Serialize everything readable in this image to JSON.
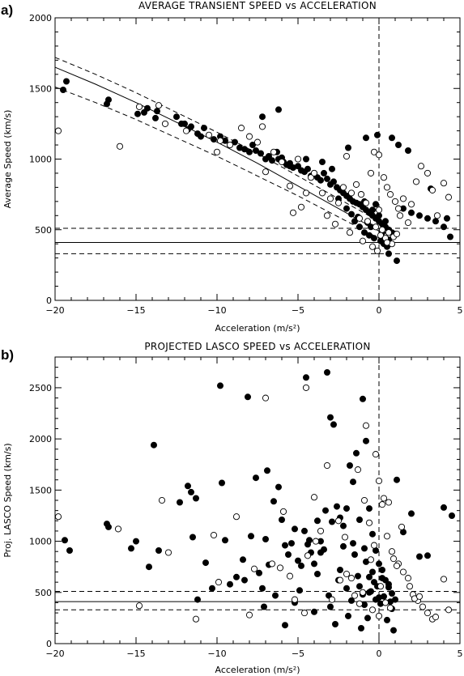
{
  "figure": {
    "panel_a_letter": "a)",
    "panel_b_letter": "b)"
  },
  "chart_data": [
    {
      "type": "scatter",
      "title": "AVERAGE TRANSIENT SPEED vs ACCELERATION",
      "xlabel": "Acceleration (m/s²)",
      "ylabel": "Average Speed (km/s)",
      "xlim": [
        -20,
        5
      ],
      "ylim": [
        0,
        2000
      ],
      "xticks": [
        -20,
        -15,
        -10,
        -5,
        0,
        5
      ],
      "yticks": [
        0,
        500,
        1000,
        1500,
        2000
      ],
      "grid": false,
      "reference_lines": {
        "vertical_dashed_x": 0,
        "horizontal_solid_y": 410,
        "horizontal_dashed_y": [
          510,
          330
        ]
      },
      "curves": [
        {
          "style": "solid",
          "x": [
            -20,
            -17.5,
            -15,
            -12.5,
            -10,
            -7.5,
            -5,
            -2.5,
            0
          ],
          "y": [
            1650,
            1530,
            1400,
            1260,
            1120,
            970,
            810,
            650,
            490
          ]
        },
        {
          "style": "dashed",
          "x": [
            -20,
            -17.5,
            -15,
            -12.5,
            -10,
            -7.5,
            -5,
            -2.5,
            0
          ],
          "y": [
            1720,
            1600,
            1470,
            1330,
            1190,
            1040,
            880,
            720,
            560
          ]
        },
        {
          "style": "dashed",
          "x": [
            -20,
            -17.5,
            -15,
            -12.5,
            -10,
            -7.5,
            -5,
            -2.5,
            0
          ],
          "y": [
            1510,
            1400,
            1280,
            1150,
            1020,
            880,
            740,
            590,
            440
          ]
        }
      ],
      "series": [
        {
          "marker": "filled",
          "x": [
            -19.3,
            -19.5,
            -16.7,
            -16.8,
            -14.9,
            -14.5,
            -14.3,
            -13.8,
            -13.7,
            -12.5,
            -12.2,
            -11.8,
            -11.6,
            -11.2,
            -11.0,
            -10.8,
            -10.2,
            -9.8,
            -9.5,
            -9.2,
            -8.9,
            -8.6,
            -8.3,
            -8.0,
            -7.8,
            -7.6,
            -7.3,
            -7.0,
            -6.8,
            -6.6,
            -6.3,
            -6.2,
            -6.0,
            -5.9,
            -5.7,
            -5.5,
            -5.3,
            -5.0,
            -4.8,
            -4.6,
            -4.4,
            -4.2,
            -4.0,
            -3.8,
            -3.6,
            -3.4,
            -3.2,
            -3.0,
            -2.8,
            -2.6,
            -2.4,
            -2.2,
            -2.0,
            -1.8,
            -1.6,
            -1.4,
            -1.2,
            -1.0,
            -0.8,
            -0.6,
            -0.4,
            -0.2,
            0.0,
            0.2,
            0.4,
            0.6,
            0.8,
            1.0,
            1.5,
            2.0,
            2.5,
            3.0,
            3.5,
            4.0,
            4.2,
            4.4,
            -1.5,
            -1.2,
            -0.9,
            -0.6,
            -0.3,
            0.1,
            0.3,
            0.5,
            -2.5,
            -2.0,
            -1.7,
            -1.3,
            -0.7,
            -0.5,
            0.2,
            0.6,
            -0.9,
            -0.4,
            0.0,
            0.4,
            -1.1,
            -0.2,
            1.2,
            0.8,
            -3.5,
            -2.9,
            -4.5,
            -5.5,
            -0.8,
            1.8,
            -1.9,
            -0.1,
            -6.2,
            -7.2,
            -12.0,
            0.6,
            1.1,
            3.2
          ],
          "y": [
            1550,
            1490,
            1420,
            1390,
            1320,
            1330,
            1360,
            1290,
            1340,
            1300,
            1250,
            1210,
            1230,
            1180,
            1160,
            1220,
            1140,
            1160,
            1130,
            1100,
            1120,
            1080,
            1070,
            1050,
            1100,
            1060,
            1040,
            1000,
            1020,
            990,
            1050,
            1000,
            1010,
            980,
            960,
            950,
            940,
            950,
            920,
            910,
            930,
            880,
            900,
            870,
            850,
            900,
            860,
            820,
            840,
            800,
            780,
            760,
            740,
            720,
            700,
            690,
            680,
            660,
            640,
            620,
            600,
            580,
            560,
            540,
            520,
            500,
            480,
            470,
            650,
            620,
            600,
            580,
            560,
            520,
            580,
            450,
            560,
            520,
            480,
            460,
            440,
            420,
            400,
            380,
            720,
            650,
            610,
            590,
            550,
            520,
            480,
            430,
            700,
            640,
            600,
            560,
            750,
            680,
            1100,
            1150,
            980,
            930,
            1000,
            970,
            1150,
            1060,
            1080,
            1170,
            1350,
            1300,
            1250,
            330,
            280,
            790
          ]
        },
        {
          "marker": "open",
          "x": [
            -19.8,
            -16.0,
            -14.8,
            -13.6,
            -13.2,
            -11.9,
            -10.5,
            -10.0,
            -9.8,
            -9.2,
            -8.5,
            -8.0,
            -7.5,
            -7.2,
            -7.0,
            -6.5,
            -6.0,
            -5.5,
            -5.3,
            -5.0,
            -4.5,
            -4.2,
            -4.0,
            -3.5,
            -3.0,
            -2.5,
            -2.2,
            -2.0,
            -1.7,
            -1.4,
            -1.1,
            -0.8,
            -0.5,
            -0.3,
            0.0,
            0.3,
            0.5,
            0.7,
            1.0,
            1.2,
            1.5,
            2.0,
            2.3,
            2.6,
            3.0,
            3.3,
            3.6,
            4.0,
            4.3,
            -1.2,
            -0.7,
            -0.2,
            0.2,
            0.6,
            0.9,
            -1.8,
            -1.0,
            0.1,
            0.4,
            0.8,
            1.3,
            -0.4,
            -2.7,
            -3.2,
            -4.8,
            -0.1,
            0.0,
            0.5,
            1.1,
            1.8
          ],
          "y": [
            1200,
            1090,
            1370,
            1380,
            1250,
            1200,
            1170,
            1050,
            1130,
            1100,
            1220,
            1160,
            1120,
            1230,
            910,
            1050,
            980,
            810,
            620,
            1000,
            760,
            870,
            900,
            760,
            720,
            690,
            800,
            1020,
            760,
            820,
            750,
            690,
            900,
            1050,
            1030,
            870,
            800,
            750,
            700,
            650,
            720,
            680,
            840,
            950,
            900,
            780,
            600,
            830,
            730,
            580,
            560,
            520,
            500,
            480,
            450,
            480,
            420,
            460,
            440,
            400,
            600,
            380,
            540,
            600,
            660,
            350,
            640,
            410,
            470,
            550
          ]
        }
      ]
    },
    {
      "type": "scatter",
      "title": "PROJECTED LASCO SPEED vs ACCELERATION",
      "xlabel": "Acceleration (m/s²)",
      "ylabel": "Proj. LASCO Speed (km/s)",
      "xlim": [
        -20,
        5
      ],
      "ylim": [
        0,
        2800
      ],
      "xticks": [
        -20,
        -15,
        -10,
        -5,
        0,
        5
      ],
      "yticks": [
        0,
        500,
        1000,
        1500,
        2000,
        2500
      ],
      "grid": false,
      "reference_lines": {
        "vertical_dashed_x": 0,
        "horizontal_solid_y": 410,
        "horizontal_dashed_y": [
          510,
          330
        ]
      },
      "series": [
        {
          "marker": "filled",
          "x": [
            -19.4,
            -19.1,
            -16.8,
            -16.7,
            -15.3,
            -15.0,
            -14.2,
            -13.9,
            -13.6,
            -12.3,
            -11.8,
            -11.6,
            -11.5,
            -11.3,
            -11.2,
            -10.7,
            -10.3,
            -9.8,
            -9.5,
            -9.2,
            -8.8,
            -8.4,
            -8.1,
            -7.9,
            -7.6,
            -7.4,
            -7.2,
            -7.0,
            -6.8,
            -6.5,
            -6.2,
            -6.0,
            -5.8,
            -5.6,
            -5.4,
            -5.2,
            -5.0,
            -4.8,
            -4.6,
            -4.4,
            -4.2,
            -4.0,
            -3.8,
            -3.6,
            -3.4,
            -3.2,
            -3.0,
            -2.8,
            -2.6,
            -2.4,
            -2.2,
            -2.0,
            -1.8,
            -1.6,
            -1.4,
            -1.2,
            -1.0,
            -0.8,
            -0.6,
            -0.4,
            -0.2,
            0.0,
            0.2,
            0.4,
            0.6,
            0.8,
            1.0,
            1.5,
            2.0,
            2.5,
            3.0,
            4.0,
            4.5,
            -4.5,
            -3.3,
            -2.9,
            -0.6,
            -0.3,
            -0.1,
            1.1,
            -2.4,
            -1.6,
            -0.9,
            -5.2,
            -6.4,
            -7.1,
            -8.3,
            -3.6,
            -1.3,
            -0.5,
            0.3,
            0.7,
            -2.0,
            -1.0,
            -0.2,
            0.1,
            -4.0,
            -3.0,
            -1.9,
            -0.7,
            0.5,
            -5.8,
            -2.7,
            -1.1,
            0.9,
            -9.7,
            -6.9,
            -4.3,
            -2.2,
            -1.5,
            -0.8,
            -0.4,
            0.2,
            0.6,
            -3.8,
            -2.5,
            -1.2,
            -0.6,
            0.0,
            0.4,
            -4.9,
            -3.1,
            -1.7,
            -0.9,
            0.8
          ],
          "y": [
            1010,
            910,
            1170,
            1140,
            930,
            1000,
            750,
            1940,
            910,
            1380,
            1540,
            1480,
            1040,
            1420,
            430,
            790,
            540,
            2520,
            1010,
            580,
            650,
            820,
            2410,
            1050,
            1620,
            690,
            540,
            1020,
            770,
            1390,
            1530,
            1210,
            960,
            870,
            980,
            1120,
            810,
            760,
            1100,
            970,
            890,
            780,
            1200,
            1000,
            920,
            2650,
            2210,
            2140,
            1340,
            1230,
            1150,
            1320,
            1740,
            1580,
            1860,
            1210,
            2390,
            1980,
            1320,
            1070,
            910,
            780,
            720,
            620,
            550,
            490,
            430,
            1090,
            1270,
            850,
            860,
            1330,
            1250,
            2600,
            1300,
            1190,
            650,
            600,
            560,
            1600,
            720,
            980,
            930,
            400,
            470,
            360,
            620,
            890,
            660,
            510,
            460,
            410,
            540,
            480,
            430,
            390,
            310,
            360,
            270,
            250,
            230,
            180,
            190,
            150,
            130,
            1570,
            1690,
            1010,
            950,
            870,
            800,
            700,
            640,
            580,
            680,
            620,
            560,
            500,
            450,
            400,
            520,
            470,
            420,
            380,
            340
          ]
        },
        {
          "marker": "open",
          "x": [
            -19.8,
            -16.1,
            -14.8,
            -13.4,
            -13.0,
            -11.3,
            -10.2,
            -9.9,
            -8.8,
            -8.0,
            -7.7,
            -7.0,
            -6.6,
            -5.9,
            -5.2,
            -4.6,
            -4.5,
            -4.0,
            -3.6,
            -3.2,
            -2.9,
            -2.5,
            -2.1,
            -1.7,
            -1.3,
            -0.9,
            -0.6,
            -0.3,
            0.0,
            0.3,
            0.6,
            0.9,
            1.2,
            1.5,
            1.8,
            2.1,
            2.4,
            2.7,
            3.0,
            3.3,
            4.0,
            4.3,
            -0.2,
            0.2,
            0.5,
            0.8,
            1.1,
            -1.0,
            -0.5,
            0.1,
            0.4,
            0.7,
            -1.5,
            -2.0,
            -0.8,
            1.4,
            1.9,
            2.2,
            -3.9,
            -4.4,
            -5.5,
            -6.1,
            -2.4,
            -1.2,
            -0.4,
            0.0,
            2.5,
            3.5
          ],
          "y": [
            1240,
            1120,
            370,
            1400,
            890,
            240,
            1060,
            600,
            1240,
            280,
            730,
            2400,
            780,
            1290,
            430,
            300,
            2500,
            1430,
            1100,
            1740,
            430,
            1200,
            1040,
            640,
            1700,
            1400,
            1180,
            960,
            1590,
            1420,
            1380,
            830,
            780,
            700,
            640,
            480,
            420,
            360,
            300,
            240,
            630,
            330,
            1850,
            1360,
            1050,
            900,
            760,
            500,
            820,
            560,
            400,
            350,
            470,
            680,
            2130,
            1140,
            560,
            440,
            1000,
            860,
            660,
            740,
            620,
            390,
            330,
            270,
            460,
            260
          ]
        }
      ]
    }
  ]
}
